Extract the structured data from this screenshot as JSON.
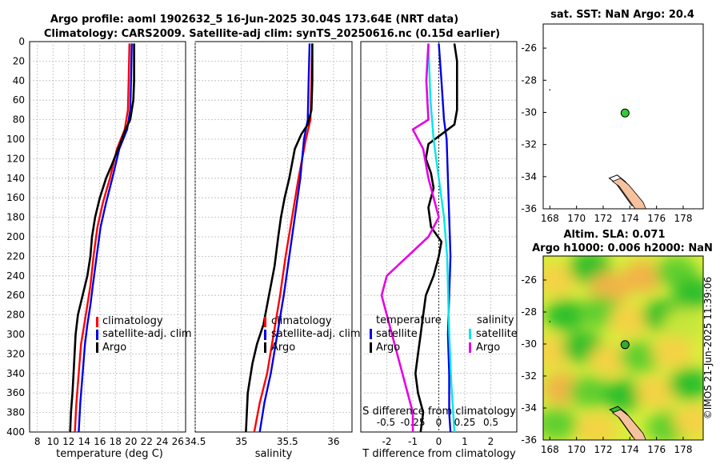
{
  "title": {
    "line1": "Argo profile: aoml 1902632_5 16-Jun-2025 30.04S 173.64E (NRT data)",
    "line2": "Climatology: CARS2009. Satellite-adj clim: synTS_20250616.nc (0.15d earlier)"
  },
  "colors": {
    "climatology": "#ff0000",
    "satellite": "#0000e6",
    "argo": "#000000",
    "sat_salinity": "#00e6e6",
    "argo_salinity": "#e600e6",
    "land": "#f6c29e",
    "map_bg": "#ffffff"
  },
  "chart_data": [
    {
      "type": "line",
      "name": "temperature-profile",
      "xlabel": "temperature (deg C)",
      "ylabel": "",
      "xlim": [
        7,
        27
      ],
      "ylim": [
        400,
        0
      ],
      "xticks": [
        "8",
        "10",
        "12",
        "14",
        "16",
        "18",
        "20",
        "22",
        "24",
        "26"
      ],
      "yticks": [
        "0",
        "20",
        "40",
        "60",
        "80",
        "100",
        "120",
        "140",
        "160",
        "180",
        "200",
        "220",
        "240",
        "260",
        "280",
        "300",
        "320",
        "340",
        "360",
        "380",
        "400"
      ],
      "legend": [
        "climatology",
        "satellite-adj. clim",
        "Argo"
      ],
      "series": [
        {
          "name": "climatology",
          "color": "#ff0000",
          "points": [
            [
              19.8,
              2
            ],
            [
              19.7,
              40
            ],
            [
              19.6,
              70
            ],
            [
              19.2,
              90
            ],
            [
              18.2,
              110
            ],
            [
              17.3,
              140
            ],
            [
              16.4,
              165
            ],
            [
              15.7,
              190
            ],
            [
              15.2,
              220
            ],
            [
              14.8,
              250
            ],
            [
              14.4,
              270
            ],
            [
              14.0,
              290
            ],
            [
              13.6,
              310
            ],
            [
              13.3,
              340
            ],
            [
              13.0,
              370
            ],
            [
              12.8,
              400
            ]
          ]
        },
        {
          "name": "satellite-adj. clim",
          "color": "#0000e6",
          "points": [
            [
              20.1,
              2
            ],
            [
              20.0,
              40
            ],
            [
              19.9,
              70
            ],
            [
              19.5,
              90
            ],
            [
              18.5,
              110
            ],
            [
              17.6,
              140
            ],
            [
              16.8,
              165
            ],
            [
              16.1,
              190
            ],
            [
              15.6,
              220
            ],
            [
              15.1,
              250
            ],
            [
              14.8,
              270
            ],
            [
              14.4,
              290
            ],
            [
              14.1,
              310
            ],
            [
              13.8,
              340
            ],
            [
              13.5,
              370
            ],
            [
              13.3,
              400
            ]
          ]
        },
        {
          "name": "Argo",
          "color": "#000000",
          "points": [
            [
              20.4,
              2
            ],
            [
              20.4,
              40
            ],
            [
              20.3,
              60
            ],
            [
              19.9,
              80
            ],
            [
              19.3,
              90
            ],
            [
              18.6,
              105
            ],
            [
              17.6,
              125
            ],
            [
              16.8,
              140
            ],
            [
              16.0,
              160
            ],
            [
              15.4,
              180
            ],
            [
              15.0,
              200
            ],
            [
              14.8,
              220
            ],
            [
              14.4,
              240
            ],
            [
              13.8,
              260
            ],
            [
              13.2,
              280
            ],
            [
              12.9,
              300
            ],
            [
              12.7,
              330
            ],
            [
              12.5,
              360
            ],
            [
              12.3,
              380
            ],
            [
              12.2,
              400
            ]
          ]
        }
      ]
    },
    {
      "type": "line",
      "name": "salinity-profile",
      "xlabel": "salinity",
      "xlim": [
        34.5,
        36.2
      ],
      "ylim": [
        400,
        0
      ],
      "xticks": [
        "34.5",
        "35",
        "35.5",
        "36"
      ],
      "legend": [
        "climatology",
        "satellite-adj. clim",
        "Argo"
      ],
      "series": [
        {
          "name": "climatology",
          "color": "#ff0000",
          "points": [
            [
              35.77,
              2
            ],
            [
              35.76,
              40
            ],
            [
              35.75,
              80
            ],
            [
              35.7,
              100
            ],
            [
              35.62,
              140
            ],
            [
              35.55,
              180
            ],
            [
              35.48,
              220
            ],
            [
              35.42,
              260
            ],
            [
              35.35,
              300
            ],
            [
              35.28,
              340
            ],
            [
              35.2,
              370
            ],
            [
              35.14,
              400
            ]
          ]
        },
        {
          "name": "satellite-adj. clim",
          "color": "#0000e6",
          "points": [
            [
              35.74,
              2
            ],
            [
              35.73,
              40
            ],
            [
              35.72,
              80
            ],
            [
              35.68,
              100
            ],
            [
              35.64,
              140
            ],
            [
              35.58,
              180
            ],
            [
              35.52,
              220
            ],
            [
              35.46,
              260
            ],
            [
              35.39,
              300
            ],
            [
              35.32,
              340
            ],
            [
              35.25,
              370
            ],
            [
              35.2,
              400
            ]
          ]
        },
        {
          "name": "Argo",
          "color": "#000000",
          "points": [
            [
              35.77,
              2
            ],
            [
              35.77,
              40
            ],
            [
              35.76,
              70
            ],
            [
              35.72,
              85
            ],
            [
              35.65,
              95
            ],
            [
              35.58,
              110
            ],
            [
              35.52,
              140
            ],
            [
              35.47,
              160
            ],
            [
              35.43,
              180
            ],
            [
              35.4,
              200
            ],
            [
              35.36,
              230
            ],
            [
              35.3,
              260
            ],
            [
              35.24,
              290
            ],
            [
              35.17,
              310
            ],
            [
              35.12,
              330
            ],
            [
              35.07,
              360
            ],
            [
              35.05,
              400
            ]
          ]
        }
      ]
    },
    {
      "type": "line",
      "name": "difference-profile",
      "xlabel": "T difference from climatology",
      "xlabel_top": "S difference from climatology",
      "xlim": [
        -3,
        3
      ],
      "ylim": [
        400,
        0
      ],
      "xticks": [
        "-2",
        "-1",
        "0",
        "1",
        "2"
      ],
      "xticks_s": [
        "-0.5",
        "-0.25",
        "0",
        "0.25",
        "0.5"
      ],
      "legend_t_title": "temperature",
      "legend_s_title": "salinity",
      "legend_t": [
        "satellite",
        "Argo"
      ],
      "legend_s": [
        "satellite",
        "Argo"
      ],
      "series": [
        {
          "name": "T satellite",
          "color": "#0000e6",
          "points": [
            [
              0.0,
              2
            ],
            [
              0.1,
              40
            ],
            [
              0.2,
              80
            ],
            [
              0.3,
              100
            ],
            [
              0.35,
              140
            ],
            [
              0.4,
              180
            ],
            [
              0.45,
              220
            ],
            [
              0.4,
              260
            ],
            [
              0.35,
              300
            ],
            [
              0.4,
              340
            ],
            [
              0.4,
              380
            ],
            [
              0.45,
              400
            ]
          ]
        },
        {
          "name": "T Argo",
          "color": "#000000",
          "points": [
            [
              0.6,
              2
            ],
            [
              0.7,
              20
            ],
            [
              0.7,
              70
            ],
            [
              0.6,
              85
            ],
            [
              0.1,
              95
            ],
            [
              -0.4,
              105
            ],
            [
              -0.5,
              120
            ],
            [
              -0.3,
              135
            ],
            [
              -0.2,
              150
            ],
            [
              -0.4,
              170
            ],
            [
              -0.3,
              190
            ],
            [
              0.1,
              205
            ],
            [
              0.0,
              220
            ],
            [
              -0.2,
              240
            ],
            [
              -0.5,
              260
            ],
            [
              -0.6,
              280
            ],
            [
              -0.7,
              300
            ],
            [
              -0.8,
              320
            ],
            [
              -0.9,
              340
            ],
            [
              -0.8,
              360
            ],
            [
              -0.6,
              380
            ],
            [
              -0.7,
              400
            ]
          ]
        },
        {
          "name": "S satellite",
          "color": "#00e6e6",
          "points": [
            [
              -0.1,
              2
            ],
            [
              -0.08,
              60
            ],
            [
              -0.05,
              100
            ],
            [
              0.0,
              140
            ],
            [
              0.05,
              180
            ],
            [
              0.08,
              220
            ],
            [
              0.1,
              300
            ],
            [
              0.12,
              350
            ],
            [
              0.15,
              400
            ]
          ]
        },
        {
          "name": "S Argo",
          "color": "#e600e6",
          "points": [
            [
              -0.1,
              2
            ],
            [
              -0.12,
              40
            ],
            [
              -0.1,
              80
            ],
            [
              -0.25,
              90
            ],
            [
              -0.15,
              110
            ],
            [
              -0.1,
              140
            ],
            [
              -0.05,
              160
            ],
            [
              0.0,
              180
            ],
            [
              -0.1,
              200
            ],
            [
              -0.3,
              220
            ],
            [
              -0.5,
              240
            ],
            [
              -0.55,
              260
            ],
            [
              -0.5,
              280
            ],
            [
              -0.45,
              300
            ],
            [
              -0.4,
              320
            ],
            [
              -0.35,
              340
            ],
            [
              -0.3,
              360
            ],
            [
              -0.25,
              380
            ],
            [
              -0.25,
              400
            ]
          ]
        }
      ]
    },
    {
      "type": "scatter",
      "name": "sst-map",
      "title": "sat. SST: NaN Argo: 20.4",
      "xlim": [
        167.5,
        179.5
      ],
      "ylim": [
        -36,
        -24.5
      ],
      "xticks": [
        "168",
        "170",
        "172",
        "174",
        "176",
        "178"
      ],
      "yticks": [
        "-26",
        "-28",
        "-30",
        "-32",
        "-34",
        "-36"
      ],
      "point": {
        "lon": 173.64,
        "lat": -30.04,
        "color": "#33cc33"
      },
      "land": [
        [
          173.3,
          -34.1
        ],
        [
          173.9,
          -34.5
        ],
        [
          174.5,
          -35.1
        ],
        [
          175.0,
          -35.6
        ],
        [
          175.2,
          -36.0
        ],
        [
          174.4,
          -36.0
        ],
        [
          173.8,
          -35.3
        ],
        [
          173.2,
          -34.6
        ],
        [
          172.7,
          -34.3
        ]
      ]
    },
    {
      "type": "heatmap",
      "name": "sla-map",
      "title": "Altim. SLA: 0.071",
      "subtitle": "Argo h1000: 0.006 h2000: NaN",
      "xlim": [
        167.5,
        179.5
      ],
      "ylim": [
        -36,
        -24.5
      ],
      "xticks": [
        "168",
        "170",
        "172",
        "174",
        "176",
        "178"
      ],
      "yticks": [
        "-26",
        "-28",
        "-30",
        "-32",
        "-34",
        "-36"
      ],
      "point": {
        "lon": 173.64,
        "lat": -30.04,
        "color": "#33aa33"
      },
      "blobs": [
        {
          "lon": 168.5,
          "lat": -26.0,
          "v": 0.14
        },
        {
          "lon": 171.0,
          "lat": -25.2,
          "v": 0.04
        },
        {
          "lon": 172.5,
          "lat": -26.5,
          "v": 0.16
        },
        {
          "lon": 175.0,
          "lat": -25.8,
          "v": 0.17
        },
        {
          "lon": 177.5,
          "lat": -25.5,
          "v": 0.05
        },
        {
          "lon": 178.8,
          "lat": -26.8,
          "v": 0.02
        },
        {
          "lon": 169.2,
          "lat": -28.2,
          "v": 0.04
        },
        {
          "lon": 171.8,
          "lat": -28.0,
          "v": 0.05
        },
        {
          "lon": 174.0,
          "lat": -28.5,
          "v": 0.15
        },
        {
          "lon": 176.5,
          "lat": -28.2,
          "v": 0.04
        },
        {
          "lon": 178.0,
          "lat": -28.8,
          "v": 0.12
        },
        {
          "lon": 168.3,
          "lat": -30.5,
          "v": 0.13
        },
        {
          "lon": 170.5,
          "lat": -30.2,
          "v": 0.03
        },
        {
          "lon": 172.5,
          "lat": -31.0,
          "v": 0.15
        },
        {
          "lon": 174.8,
          "lat": -30.8,
          "v": 0.05
        },
        {
          "lon": 177.2,
          "lat": -30.5,
          "v": 0.13
        },
        {
          "lon": 169.0,
          "lat": -32.8,
          "v": 0.16
        },
        {
          "lon": 171.0,
          "lat": -33.0,
          "v": 0.05
        },
        {
          "lon": 173.5,
          "lat": -33.2,
          "v": 0.03
        },
        {
          "lon": 176.0,
          "lat": -33.0,
          "v": 0.14
        },
        {
          "lon": 178.5,
          "lat": -32.5,
          "v": 0.04
        },
        {
          "lon": 168.5,
          "lat": -35.0,
          "v": 0.05
        },
        {
          "lon": 171.5,
          "lat": -35.3,
          "v": 0.14
        },
        {
          "lon": 176.8,
          "lat": -35.2,
          "v": 0.05
        },
        {
          "lon": 178.8,
          "lat": -34.8,
          "v": 0.15
        }
      ],
      "land": [
        [
          173.3,
          -34.1
        ],
        [
          173.9,
          -34.5
        ],
        [
          174.5,
          -35.1
        ],
        [
          175.0,
          -35.6
        ],
        [
          175.2,
          -36.0
        ],
        [
          174.4,
          -36.0
        ],
        [
          173.8,
          -35.3
        ],
        [
          173.2,
          -34.6
        ],
        [
          172.7,
          -34.3
        ]
      ]
    }
  ],
  "credit": "©IMOS 21-Jun-2025 11:39:06"
}
